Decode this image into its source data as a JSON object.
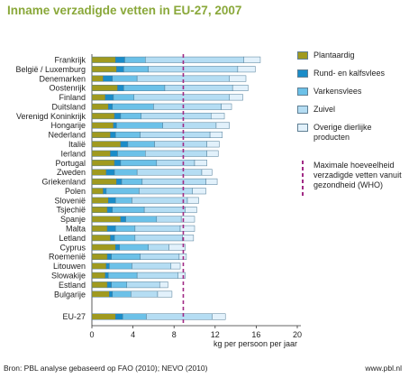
{
  "title": "Inname verzadigde vetten in EU-27, 2007",
  "source": "Bron: PBL analyse gebaseerd op FAO (2010); NEVO (2010)",
  "website": "www.pbl.nl",
  "legend": {
    "items": [
      {
        "label": "Plantaardig",
        "color": "#a09a1f"
      },
      {
        "label": "Rund- en kalfsvlees",
        "color": "#1a8cc8"
      },
      {
        "label": "Varkensvlees",
        "color": "#6cc1e8"
      },
      {
        "label": "Zuivel",
        "color": "#b5ddf3"
      },
      {
        "label": "Overige dierlijke producten",
        "color": "#e2f1fb"
      }
    ],
    "max_label": "Maximale hoeveelheid verzadigde vetten vanuit gezondheid (WHO)",
    "max_color": "#a12a85"
  },
  "chart_data": {
    "type": "bar",
    "orientation": "horizontal",
    "stacked": true,
    "title": "Inname verzadigde vetten in EU-27, 2007",
    "xlabel": "kg per persoon per jaar",
    "xlim": [
      0,
      20
    ],
    "xticks": [
      0,
      4,
      8,
      12,
      16,
      20
    ],
    "reference_line": {
      "value": 8.9,
      "label": "Maximale hoeveelheid verzadigde vetten vanuit gezondheid (WHO)"
    },
    "categories": [
      "Frankrijk",
      "België / Luxemburg",
      "Denemarken",
      "Oostenrijk",
      "Finland",
      "Duitsland",
      "Verenigd Koninkrijk",
      "Hongarije",
      "Nederland",
      "Italië",
      "Ierland",
      "Portugal",
      "Zweden",
      "Griekenland",
      "Polen",
      "Slovenië",
      "Tsjechië",
      "Spanje",
      "Malta",
      "Letland",
      "Cyprus",
      "Roemenië",
      "Litouwen",
      "Slowakije",
      "Estland",
      "Bulgarije",
      "EU-27"
    ],
    "series": [
      {
        "name": "Plantaardig",
        "values": [
          2.3,
          2.4,
          1.1,
          2.5,
          1.3,
          1.6,
          2.2,
          2.1,
          1.8,
          2.8,
          1.8,
          2.2,
          1.4,
          2.4,
          1.1,
          1.6,
          1.5,
          2.8,
          1.5,
          1.8,
          2.3,
          1.5,
          1.4,
          1.3,
          1.5,
          1.7,
          2.3
        ]
      },
      {
        "name": "Rund- en kalfsvlees",
        "values": [
          0.9,
          0.7,
          0.9,
          0.6,
          0.8,
          0.4,
          0.6,
          0.3,
          0.5,
          0.7,
          0.7,
          0.6,
          0.8,
          0.5,
          0.3,
          0.7,
          0.5,
          0.5,
          0.8,
          0.4,
          0.4,
          0.4,
          0.3,
          0.3,
          0.4,
          0.3,
          0.7
        ]
      },
      {
        "name": "Varkensvlees",
        "values": [
          2.0,
          2.4,
          2.4,
          4.0,
          2.0,
          4.0,
          2.0,
          4.5,
          2.4,
          2.6,
          2.7,
          3.5,
          2.2,
          2.0,
          3.2,
          1.6,
          3.1,
          3.0,
          1.9,
          2.0,
          2.8,
          2.8,
          2.2,
          2.8,
          1.5,
          1.8,
          2.3
        ]
      },
      {
        "name": "Zuivel",
        "values": [
          9.6,
          8.7,
          9.0,
          6.6,
          9.3,
          6.6,
          6.8,
          5.2,
          6.8,
          5.1,
          6.0,
          3.7,
          6.3,
          6.2,
          5.2,
          5.4,
          4.0,
          2.4,
          4.4,
          4.6,
          2.0,
          3.8,
          3.8,
          4.0,
          3.2,
          2.6,
          6.4
        ]
      },
      {
        "name": "Overige dierlijke producten",
        "values": [
          1.6,
          1.7,
          1.6,
          1.5,
          1.3,
          1.0,
          1.3,
          1.3,
          1.2,
          1.2,
          1.1,
          1.2,
          1.0,
          1.1,
          1.3,
          1.1,
          1.1,
          1.3,
          1.4,
          1.1,
          1.6,
          0.7,
          0.9,
          0.7,
          0.8,
          1.4,
          1.3
        ]
      }
    ]
  }
}
